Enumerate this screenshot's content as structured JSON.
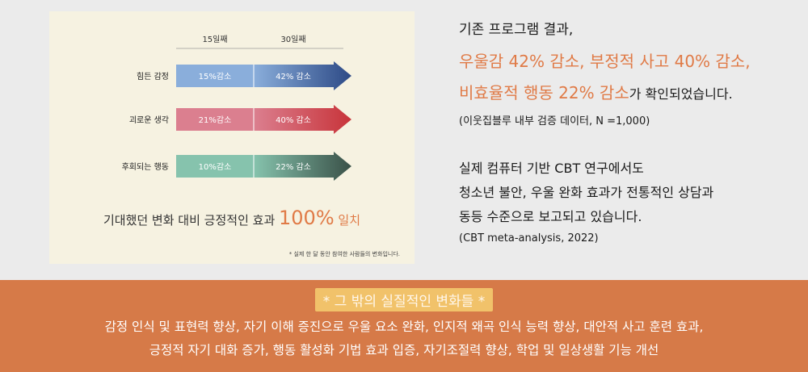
{
  "chart_data": {
    "type": "bar",
    "columns": [
      "15일째",
      "30일째"
    ],
    "rows": [
      {
        "label": "힘든 감정",
        "day15": "15%감소",
        "day30": "42% 감소",
        "day15_value": 15,
        "day30_value": 42,
        "color_light": "#8aaedb",
        "color_dark": "#2d4a86"
      },
      {
        "label": "괴로운 생각",
        "day15": "21%감소",
        "day30": "40% 감소",
        "day15_value": 21,
        "day30_value": 40,
        "color_light": "#db7f8f",
        "color_dark": "#c8343a"
      },
      {
        "label": "후회되는 행동",
        "day15": "10%감소",
        "day30": "22% 감소",
        "day15_value": 10,
        "day30_value": 22,
        "color_light": "#86c3ad",
        "color_dark": "#3a5148"
      }
    ]
  },
  "summary": {
    "prefix": "기대했던 변화 대비 긍정적인 효과 ",
    "big": "100%",
    "suffix": " 일치"
  },
  "footnote": "* 실제 한 달 동안 참여한 사람들의 변화입니다.",
  "right": {
    "line1": "기존 프로그램 결과,",
    "line2": "우울감 42% 감소, 부정적 사고 40% 감소,",
    "line3": "비효율적 행동 22% 감소",
    "line3_tail": "가 확인되었습니다.",
    "source1": "(이웃집블루 내부 검증 데이터, N =1,000)",
    "p1": "실제 컴퓨터 기반 CBT 연구에서도",
    "p2": "청소년 불안, 우울 완화 효과가 전통적인 상담과",
    "p3": "동등 수준으로 보고되고 있습니다.",
    "source2": "(CBT meta-analysis, 2022)"
  },
  "banner": {
    "heading": "* 그 밖의 실질적인 변화들 *",
    "line1": "감정 인식 및 표현력 향상, 자기 이해 증진으로 우울 요소 완화, 인지적 왜곡 인식 능력 향상, 대안적 사고 훈련 효과,",
    "line2": "긍정적 자기 대화 증가, 행동 활성화 기법 효과 입증, 자기조절력 향상, 학업 및 일상생활 기능 개선"
  }
}
